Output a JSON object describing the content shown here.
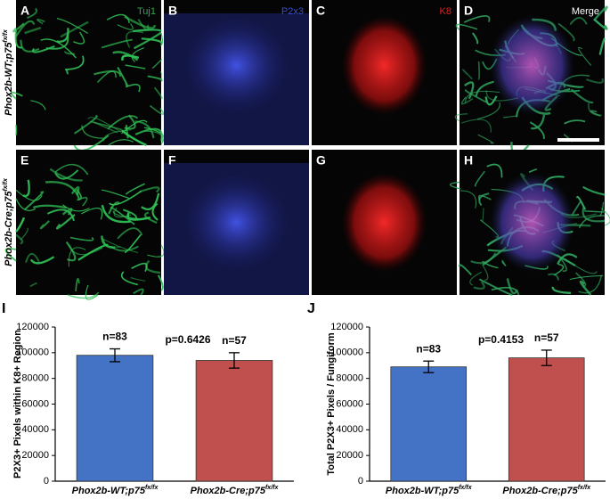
{
  "figure": {
    "panels": [
      {
        "letter": "A",
        "channel": "Tuj1",
        "channel_color": "#2fa84f"
      },
      {
        "letter": "B",
        "channel": "P2x3",
        "channel_color": "#3a4fd8"
      },
      {
        "letter": "C",
        "channel": "K8",
        "channel_color": "#e02020"
      },
      {
        "letter": "D",
        "channel": "Merge",
        "channel_color": "#ffffff"
      },
      {
        "letter": "E"
      },
      {
        "letter": "F"
      },
      {
        "letter": "G"
      },
      {
        "letter": "H"
      }
    ],
    "row_labels": [
      {
        "text": "Phox2b-WT;p75",
        "sup": "fx/fx"
      },
      {
        "text": "Phox2b-Cre;p75",
        "sup": "fx/fx"
      }
    ]
  },
  "chart_data": [
    {
      "type": "bar",
      "panel_label": "I",
      "ylabel": "P2X3+ Pixels within K8+ Region",
      "annotation": "p=0.6426",
      "categories": [
        "Phox2b-WT;p75",
        "Phox2b-Cre;p75"
      ],
      "category_superscripts": [
        "fx/fx",
        "fx/fx"
      ],
      "values": [
        98000,
        94000
      ],
      "errors": [
        5000,
        6000
      ],
      "counts": [
        "n=83",
        "n=57"
      ],
      "colors": [
        "#4472c4",
        "#c0504d"
      ],
      "ylim": [
        0,
        120000
      ],
      "yticks": [
        0,
        20000,
        40000,
        60000,
        80000,
        100000,
        120000
      ]
    },
    {
      "type": "bar",
      "panel_label": "J",
      "ylabel": "Total P2X3+ Pixels / Fungiform",
      "annotation": "p=0.4153",
      "categories": [
        "Phox2b-WT;p75",
        "Phox2b-Cre;p75"
      ],
      "category_superscripts": [
        "fx/fx",
        "fx/fx"
      ],
      "values": [
        89000,
        96000
      ],
      "errors": [
        4500,
        6000
      ],
      "counts": [
        "n=83",
        "n=57"
      ],
      "colors": [
        "#4472c4",
        "#c0504d"
      ],
      "ylim": [
        0,
        120000
      ],
      "yticks": [
        0,
        20000,
        40000,
        60000,
        80000,
        100000,
        120000
      ]
    }
  ]
}
